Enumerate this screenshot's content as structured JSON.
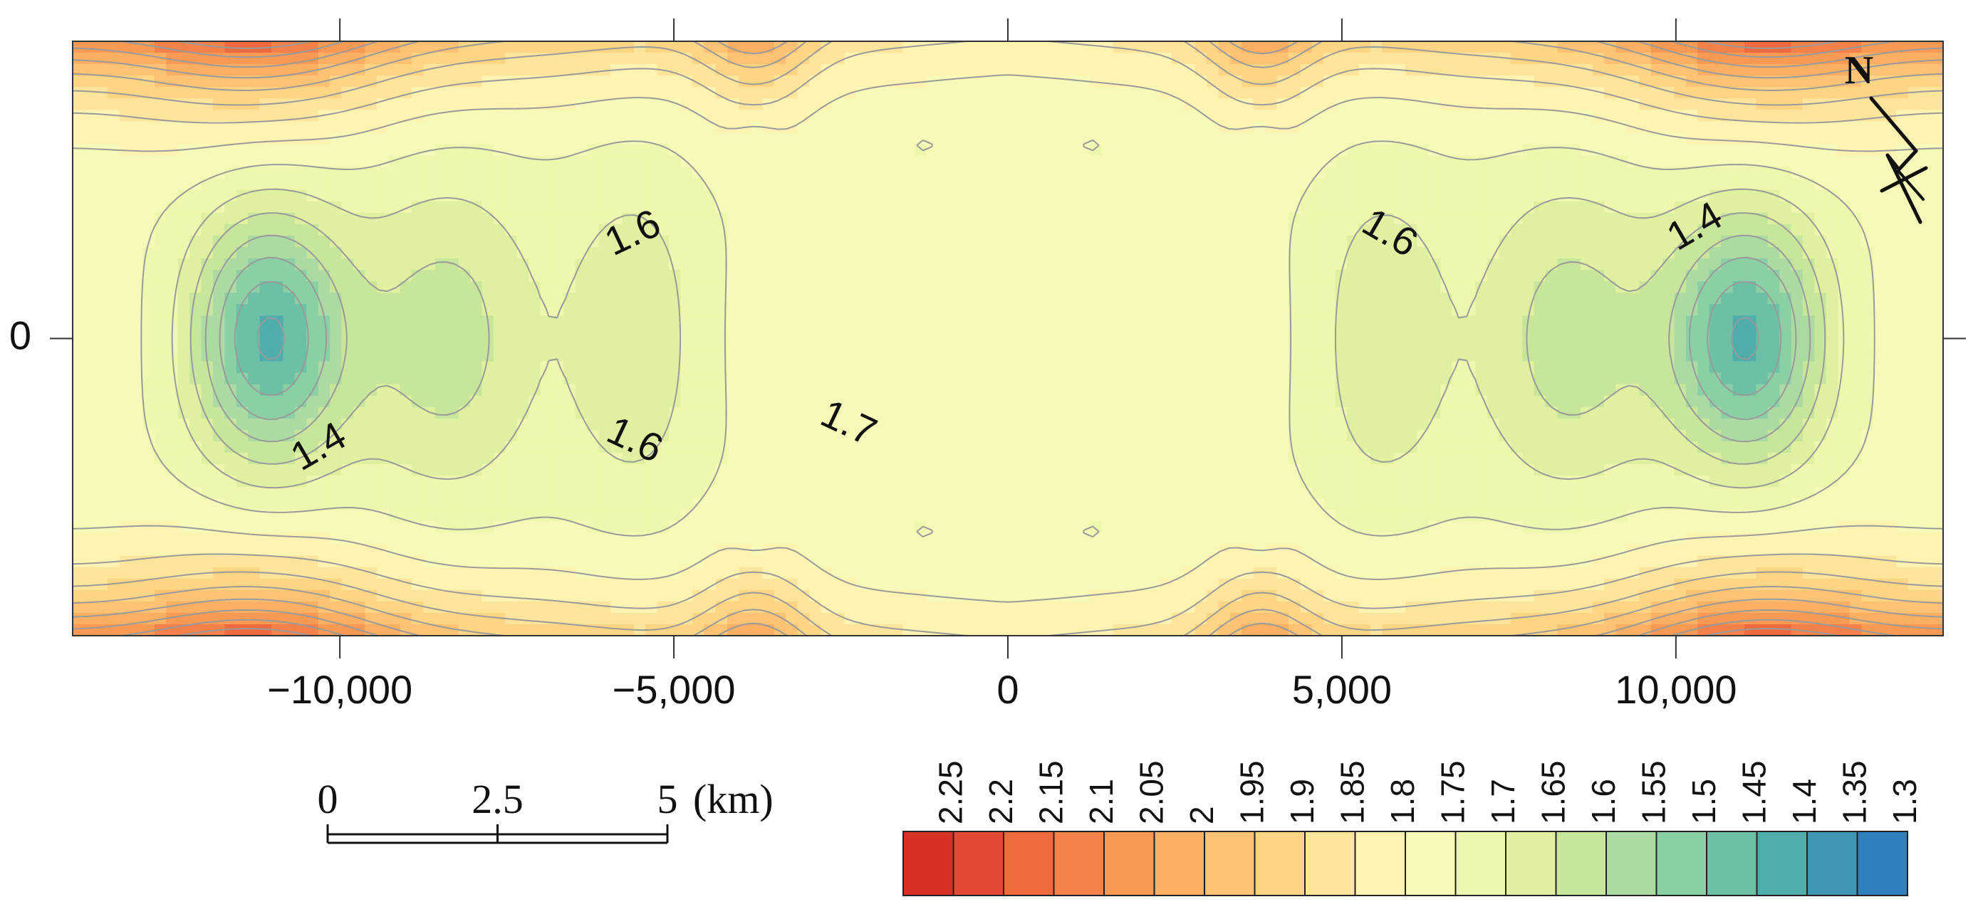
{
  "chart_data": {
    "type": "heatmap",
    "subtype": "filled contour map",
    "x_axis": {
      "range": [
        -14000,
        14000
      ],
      "ticks": [
        -10000,
        -5000,
        0,
        5000,
        10000
      ],
      "tick_labels": [
        "−10,000",
        "−5,000",
        "0",
        "5,000",
        "10,000"
      ]
    },
    "y_axis": {
      "ticks": [
        0
      ],
      "tick_labels": [
        "0"
      ]
    },
    "contour_line_labels": [
      "1.4",
      "1.6",
      "1.7",
      "1.6",
      "1.6",
      "1.4"
    ],
    "field": {
      "center_value": 1.75,
      "min_value": 1.3,
      "max_value": 2.25,
      "minimum_locations_x": [
        -11000,
        11000
      ],
      "maximum_locations_x": [
        -11000,
        -3800,
        3800,
        11000
      ],
      "maximum_location": "top and bottom edges"
    },
    "colorbar": {
      "levels": [
        "2.25",
        "2.2",
        "2.15",
        "2.1",
        "2.05",
        "2",
        "1.95",
        "1.9",
        "1.85",
        "1.8",
        "1.75",
        "1.7",
        "1.65",
        "1.6",
        "1.55",
        "1.5",
        "1.45",
        "1.4",
        "1.35",
        "1.3"
      ],
      "colors": [
        "#d73027",
        "#e34a33",
        "#ef6a3f",
        "#f4814a",
        "#f89a54",
        "#fbaf63",
        "#fdc273",
        "#fed585",
        "#fee59b",
        "#fff3b2",
        "#f7f9b8",
        "#eef7ad",
        "#dff0a0",
        "#c8e69b",
        "#abdba2",
        "#8bcfa4",
        "#6cc0a6",
        "#4fadab",
        "#4196b4",
        "#2f80bd"
      ]
    },
    "scale_bar": {
      "labels": [
        "0",
        "2.5",
        "5"
      ],
      "unit": "(km)"
    },
    "north_arrow": "N",
    "grid": false
  }
}
